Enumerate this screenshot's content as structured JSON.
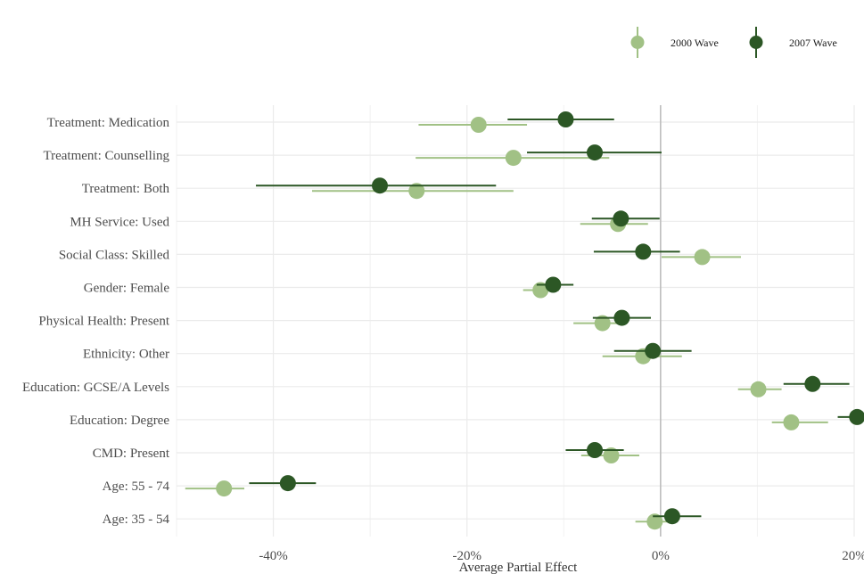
{
  "chart_data": {
    "type": "scatter",
    "xlabel": "Average Partial Effect",
    "ylabel": "",
    "xlim": [
      -0.5,
      0.2
    ],
    "x_ticks": [
      {
        "value": -0.4,
        "label": "-40%"
      },
      {
        "value": -0.2,
        "label": "-20%"
      },
      {
        "value": 0.0,
        "label": "0%"
      },
      {
        "value": 0.2,
        "label": "20%"
      }
    ],
    "categories": [
      "Treatment: Medication",
      "Treatment: Counselling",
      "Treatment: Both",
      "MH Service: Used",
      "Social Class: Skilled",
      "Gender: Female",
      "Physical Health: Present",
      "Ethnicity: Other",
      "Education: GCSE/A Levels",
      "Education: Degree",
      "CMD: Present",
      "Age: 55 - 74",
      "Age: 35 - 54"
    ],
    "legend": {
      "position": "top-right"
    },
    "grid": true,
    "reference_line": 0,
    "series": [
      {
        "name": "2000 Wave",
        "color": "#a1c185",
        "points": [
          {
            "est": -0.188,
            "lo": -0.25,
            "hi": -0.138
          },
          {
            "est": -0.152,
            "lo": -0.253,
            "hi": -0.053
          },
          {
            "est": -0.252,
            "lo": -0.36,
            "hi": -0.152
          },
          {
            "est": -0.044,
            "lo": -0.083,
            "hi": -0.013
          },
          {
            "est": 0.043,
            "lo": 0.001,
            "hi": 0.083
          },
          {
            "est": -0.124,
            "lo": -0.142,
            "hi": -0.105
          },
          {
            "est": -0.06,
            "lo": -0.09,
            "hi": -0.04
          },
          {
            "est": -0.018,
            "lo": -0.06,
            "hi": 0.022
          },
          {
            "est": 0.101,
            "lo": 0.08,
            "hi": 0.125
          },
          {
            "est": 0.135,
            "lo": 0.115,
            "hi": 0.173
          },
          {
            "est": -0.051,
            "lo": -0.082,
            "hi": -0.022
          },
          {
            "est": -0.451,
            "lo": -0.491,
            "hi": -0.43
          },
          {
            "est": -0.006,
            "lo": -0.026,
            "hi": 0.012
          }
        ]
      },
      {
        "name": "2007 Wave",
        "color": "#2c5725",
        "points": [
          {
            "est": -0.098,
            "lo": -0.158,
            "hi": -0.048
          },
          {
            "est": -0.068,
            "lo": -0.138,
            "hi": 0.001
          },
          {
            "est": -0.29,
            "lo": -0.418,
            "hi": -0.17
          },
          {
            "est": -0.041,
            "lo": -0.071,
            "hi": -0.001
          },
          {
            "est": -0.018,
            "lo": -0.069,
            "hi": 0.02
          },
          {
            "est": -0.111,
            "lo": -0.128,
            "hi": -0.09
          },
          {
            "est": -0.04,
            "lo": -0.07,
            "hi": -0.01
          },
          {
            "est": -0.008,
            "lo": -0.048,
            "hi": 0.032
          },
          {
            "est": 0.157,
            "lo": 0.127,
            "hi": 0.195
          },
          {
            "est": 0.203,
            "lo": 0.183,
            "hi": 0.253
          },
          {
            "est": -0.068,
            "lo": -0.098,
            "hi": -0.038
          },
          {
            "est": -0.385,
            "lo": -0.425,
            "hi": -0.356
          },
          {
            "est": 0.012,
            "lo": -0.008,
            "hi": 0.042
          }
        ]
      }
    ]
  }
}
